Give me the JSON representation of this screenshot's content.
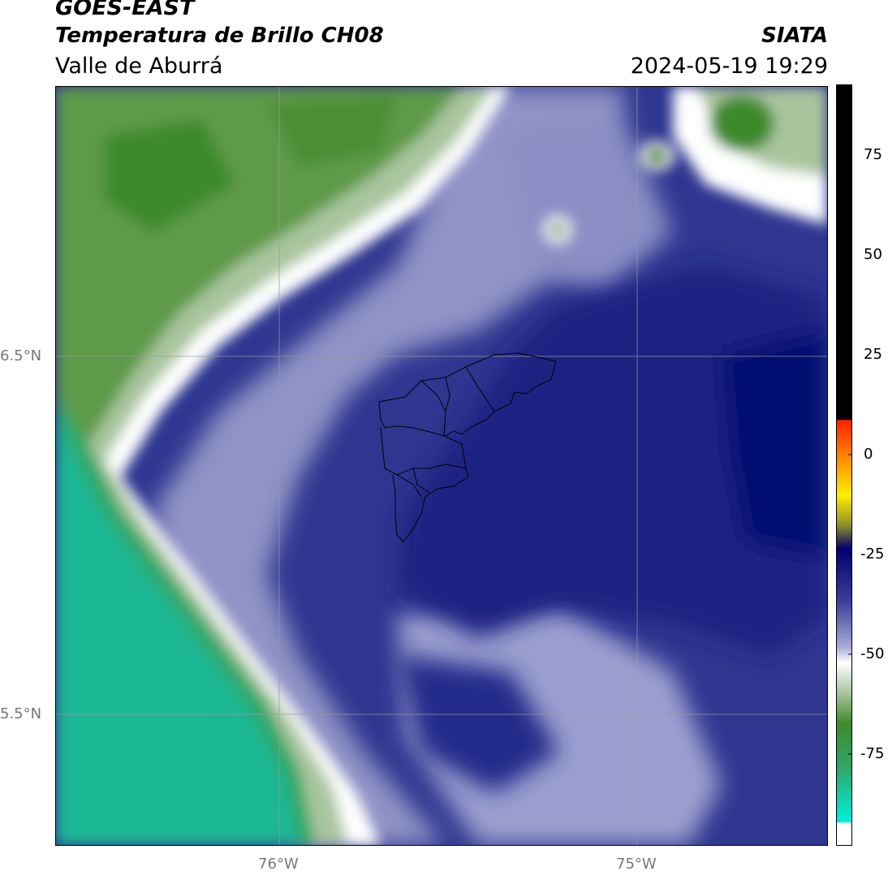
{
  "header": {
    "satellite": "GOES-EAST",
    "product": "Temperatura de Brillo CH08",
    "region": "Valle de Aburrá",
    "agency": "SIATA",
    "datetime": "2024-05-19 19:29"
  },
  "map": {
    "lat_labels": [
      "6.5°N",
      "5.5°N"
    ],
    "lon_labels": [
      "76°W",
      "75°W"
    ]
  },
  "colorbar": {
    "ticks": [
      "75",
      "50",
      "25",
      "0",
      "-25",
      "-50",
      "-75"
    ],
    "colors": {
      "teal": "#1ad7b0",
      "green": "#3e8a2a",
      "white": "#ffffff",
      "lavender": "#a9acd6",
      "navy": "#1a2080",
      "deep_navy": "#000070",
      "yellow": "#ffee00",
      "orange": "#ff8800",
      "red": "#ff2000",
      "black": "#000000"
    }
  }
}
